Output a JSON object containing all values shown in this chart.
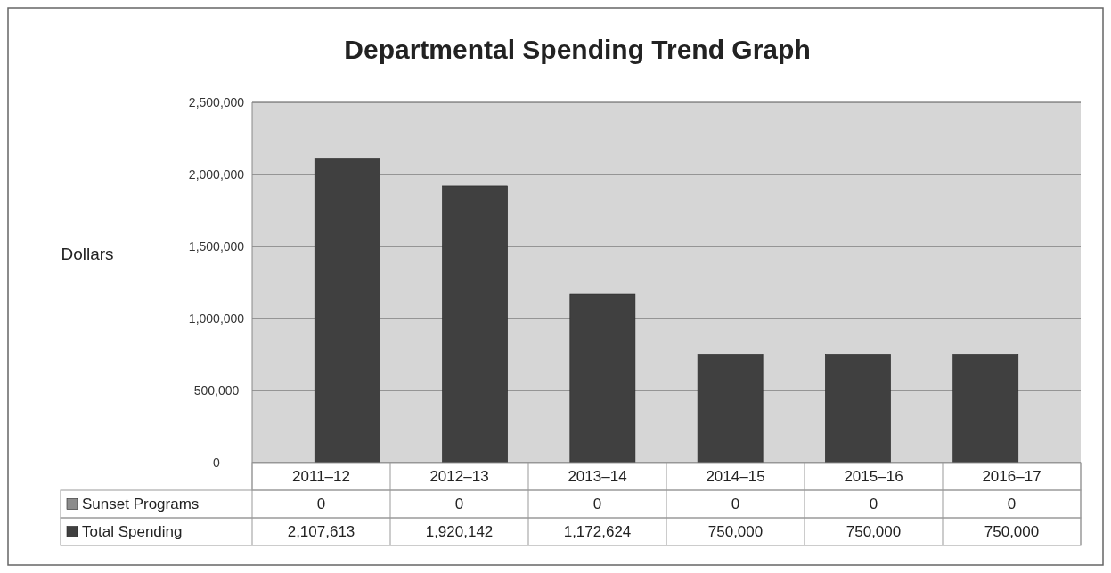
{
  "chart_data": {
    "type": "bar",
    "title": "Departmental Spending Trend Graph",
    "ylabel": "Dollars",
    "categories": [
      "2011–12",
      "2012–13",
      "2013–14",
      "2014–15",
      "2015–16",
      "2016–17"
    ],
    "series": [
      {
        "name": "Sunset Programs",
        "color": "#8c8c8c",
        "values": [
          0,
          0,
          0,
          0,
          0,
          0
        ],
        "value_labels": [
          "0",
          "0",
          "0",
          "0",
          "0",
          "0"
        ]
      },
      {
        "name": "Total Spending",
        "color": "#404040",
        "values": [
          2107613,
          1920142,
          1172624,
          750000,
          750000,
          750000
        ],
        "value_labels": [
          "2,107,613",
          "1,920,142",
          "1,172,624",
          "750,000",
          "750,000",
          "750,000"
        ]
      }
    ],
    "ylim": [
      0,
      2500000
    ],
    "yticks": [
      {
        "value": 0,
        "label": "0"
      },
      {
        "value": 500000,
        "label": "500,000"
      },
      {
        "value": 1000000,
        "label": "1,000,000"
      },
      {
        "value": 1500000,
        "label": "1,500,000"
      },
      {
        "value": 2000000,
        "label": "2,000,000"
      },
      {
        "value": 2500000,
        "label": "2,500,000"
      }
    ],
    "grid": "y",
    "legend": "bottom left"
  }
}
